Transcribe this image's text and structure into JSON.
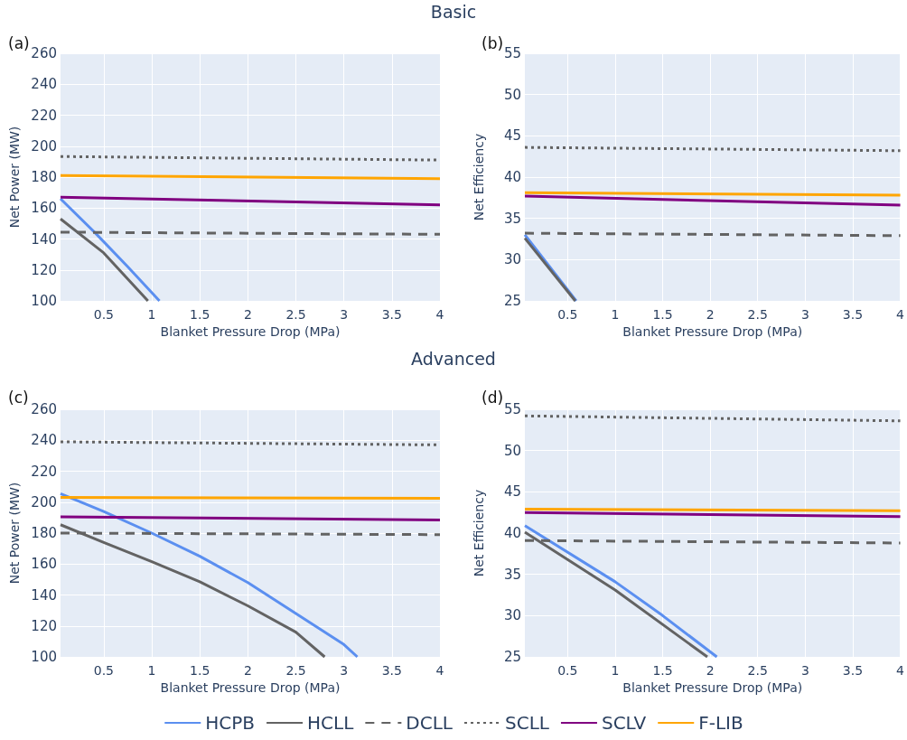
{
  "chart_data": [
    {
      "type": "line",
      "title": "(a)",
      "subtitle": "Basic",
      "xlabel": "Blanket Pressure Drop (MPa)",
      "ylabel": "Net Power (MW)",
      "xlim": [
        0.05,
        4
      ],
      "xticks": [
        0.5,
        1,
        1.5,
        2,
        2.5,
        3,
        3.5,
        4
      ],
      "ylim": [
        100,
        260
      ],
      "yticks": [
        100,
        120,
        140,
        160,
        180,
        200,
        220,
        240,
        260
      ],
      "grid": true,
      "series": [
        {
          "color": "#5b8ff0",
          "x": [
            0.05,
            0.41,
            0.75,
            1.08
          ],
          "values": [
            166,
            144,
            122,
            100
          ]
        },
        {
          "color": "#636363",
          "x": [
            0.05,
            0.5,
            0.96
          ],
          "values": [
            153,
            131,
            100
          ]
        },
        {
          "color": "#636363",
          "line_style": "dashed",
          "x": [
            0.05,
            4
          ],
          "values": [
            144.4,
            143
          ]
        },
        {
          "color": "#636363",
          "line_style": "dotted",
          "x": [
            0.05,
            4
          ],
          "values": [
            193.3,
            191
          ]
        },
        {
          "color": "#800080",
          "x": [
            0.05,
            4
          ],
          "values": [
            167,
            162
          ]
        },
        {
          "color": "#ffa500",
          "x": [
            0.05,
            4
          ],
          "values": [
            181,
            179
          ]
        }
      ]
    },
    {
      "type": "line",
      "title": "(b)",
      "xlabel": "Blanket Pressure Drop (MPa)",
      "ylabel": "Net Efficiency",
      "xlim": [
        0.05,
        4
      ],
      "xticks": [
        0.5,
        1,
        1.5,
        2,
        2.5,
        3,
        3.5,
        4
      ],
      "ylim": [
        25,
        55
      ],
      "yticks": [
        25,
        30,
        35,
        40,
        45,
        50,
        55
      ],
      "grid": true,
      "series": [
        {
          "color": "#5b8ff0",
          "x": [
            0.05,
            0.59
          ],
          "values": [
            33,
            25
          ]
        },
        {
          "color": "#636363",
          "x": [
            0.05,
            0.58
          ],
          "values": [
            32.6,
            25
          ]
        },
        {
          "color": "#636363",
          "line_style": "dashed",
          "x": [
            0.05,
            4
          ],
          "values": [
            33.2,
            32.9
          ]
        },
        {
          "color": "#636363",
          "line_style": "dotted",
          "x": [
            0.05,
            4
          ],
          "values": [
            43.6,
            43.2
          ]
        },
        {
          "color": "#800080",
          "x": [
            0.05,
            4
          ],
          "values": [
            37.7,
            36.6
          ]
        },
        {
          "color": "#ffa500",
          "x": [
            0.05,
            4
          ],
          "values": [
            38.1,
            37.8
          ]
        }
      ]
    },
    {
      "type": "line",
      "title": "(c)",
      "subtitle": "Advanced",
      "xlabel": "Blanket Pressure Drop (MPa)",
      "ylabel": "Net Power (MW)",
      "xlim": [
        0.05,
        4
      ],
      "xticks": [
        0.5,
        1,
        1.5,
        2,
        2.5,
        3,
        3.5,
        4
      ],
      "ylim": [
        100,
        260
      ],
      "yticks": [
        100,
        120,
        140,
        160,
        180,
        200,
        220,
        240,
        260
      ],
      "grid": true,
      "series": [
        {
          "color": "#5b8ff0",
          "x": [
            0.05,
            0.5,
            1,
            1.5,
            2,
            2.5,
            3,
            3.14
          ],
          "values": [
            205.5,
            194,
            180,
            165,
            148,
            128,
            108,
            100
          ]
        },
        {
          "color": "#636363",
          "x": [
            0.05,
            0.5,
            1,
            1.5,
            2,
            2.5,
            2.8
          ],
          "values": [
            185.4,
            174,
            161.5,
            148.5,
            133,
            116,
            100
          ]
        },
        {
          "color": "#636363",
          "line_style": "dashed",
          "x": [
            0.05,
            4
          ],
          "values": [
            180,
            179
          ]
        },
        {
          "color": "#636363",
          "line_style": "dotted",
          "x": [
            0.05,
            4
          ],
          "values": [
            239,
            237
          ]
        },
        {
          "color": "#800080",
          "x": [
            0.05,
            4
          ],
          "values": [
            190.5,
            188.5
          ]
        },
        {
          "color": "#ffa500",
          "x": [
            0.05,
            4
          ],
          "values": [
            203,
            202.5
          ]
        }
      ]
    },
    {
      "type": "line",
      "title": "(d)",
      "xlabel": "Blanket Pressure Drop (MPa)",
      "ylabel": "Net Efficiency",
      "xlim": [
        0.05,
        4
      ],
      "xticks": [
        0.5,
        1,
        1.5,
        2,
        2.5,
        3,
        3.5,
        4
      ],
      "ylim": [
        25,
        55
      ],
      "yticks": [
        25,
        30,
        35,
        40,
        45,
        50,
        55
      ],
      "grid": true,
      "legend": "bottom",
      "series": [
        {
          "name": "HCPB",
          "color": "#5b8ff0",
          "x": [
            0.05,
            1,
            1.5,
            2.07
          ],
          "values": [
            40.9,
            34.1,
            30,
            25
          ]
        },
        {
          "name": "HCLL",
          "color": "#636363",
          "x": [
            0.05,
            1,
            1.97
          ],
          "values": [
            40.1,
            33.1,
            25
          ]
        },
        {
          "name": "DCLL",
          "color": "#636363",
          "line_style": "dashed",
          "x": [
            0.05,
            4
          ],
          "values": [
            39.1,
            38.8
          ]
        },
        {
          "name": "SCLL",
          "color": "#636363",
          "line_style": "dotted",
          "x": [
            0.05,
            4
          ],
          "values": [
            54.2,
            53.6
          ]
        },
        {
          "name": "SCLV",
          "color": "#800080",
          "x": [
            0.05,
            4
          ],
          "values": [
            42.5,
            42
          ]
        },
        {
          "name": "F-LIB",
          "color": "#ffa500",
          "x": [
            0.05,
            4
          ],
          "values": [
            42.9,
            42.7
          ]
        }
      ]
    }
  ]
}
